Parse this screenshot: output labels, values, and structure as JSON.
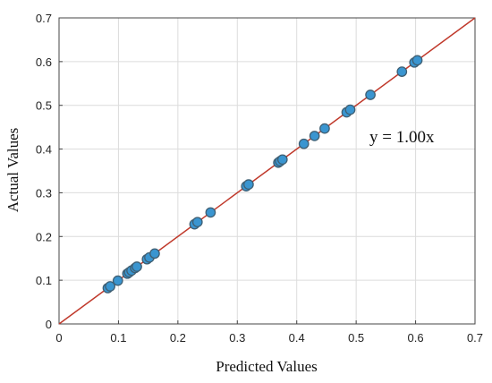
{
  "chart_data": {
    "type": "scatter",
    "xlabel": "Predicted Values",
    "ylabel": "Actual Values",
    "xlim": [
      0,
      0.7
    ],
    "ylim": [
      0,
      0.7
    ],
    "xticks": [
      "0",
      "0.1",
      "0.2",
      "0.3",
      "0.4",
      "0.5",
      "0.6",
      "0.7"
    ],
    "yticks": [
      "0",
      "0.1",
      "0.2",
      "0.3",
      "0.4",
      "0.5",
      "0.6",
      "0.7"
    ],
    "grid": true,
    "annotation": "y = 1.00x",
    "fit_line": {
      "slope": 1.0,
      "color": "#c0392b"
    },
    "marker_color": "#3a95d0",
    "series": [
      {
        "x": [
          0.082,
          0.086,
          0.099,
          0.115,
          0.118,
          0.122,
          0.128,
          0.131,
          0.148,
          0.152,
          0.161,
          0.228,
          0.233,
          0.255,
          0.315,
          0.319,
          0.369,
          0.372,
          0.376,
          0.412,
          0.43,
          0.447,
          0.484,
          0.49,
          0.524,
          0.577,
          0.598,
          0.603
        ],
        "y": [
          0.082,
          0.086,
          0.099,
          0.115,
          0.118,
          0.122,
          0.128,
          0.131,
          0.148,
          0.152,
          0.161,
          0.228,
          0.233,
          0.255,
          0.315,
          0.319,
          0.369,
          0.372,
          0.376,
          0.412,
          0.43,
          0.447,
          0.484,
          0.49,
          0.524,
          0.577,
          0.598,
          0.603
        ]
      }
    ]
  }
}
